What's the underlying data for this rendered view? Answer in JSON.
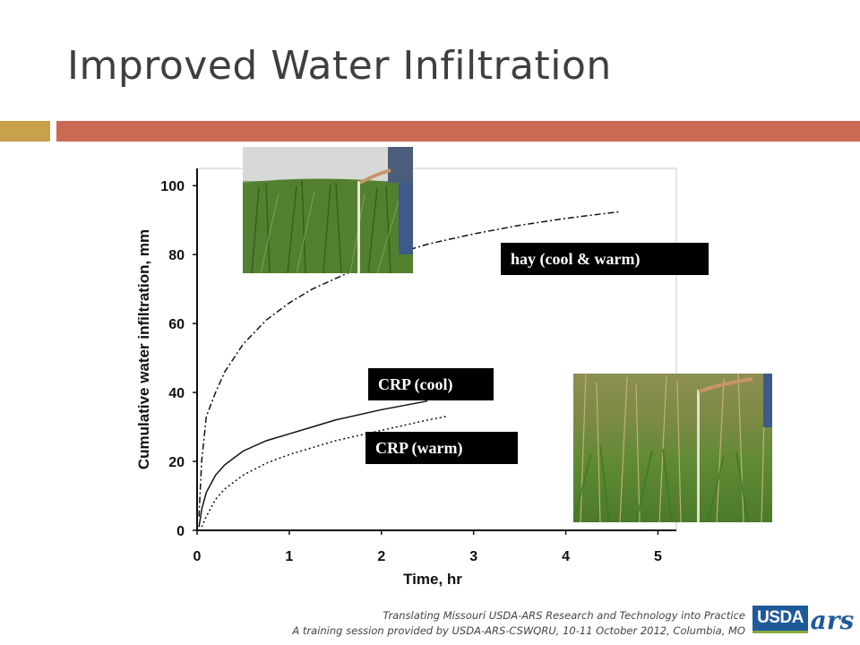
{
  "slide": {
    "title": "Improved Water Infiltration",
    "footer": {
      "line1": "Translating Missouri USDA-ARS Research and Technology into Practice",
      "line2": "A training session provided by USDA-ARS-CSWQRU, 10-11 October 2012, Columbia, MO"
    },
    "logo": {
      "usda": "USDA",
      "ars": "ars"
    },
    "colors": {
      "title": "#3f3f3f",
      "bar_gold": "#c9a04b",
      "bar_rust": "#c96a52",
      "logo_blue": "#1f5a98"
    }
  },
  "chart_data": {
    "type": "line",
    "title": "",
    "xlabel": "Time, hr",
    "ylabel": "Cumulative water infiltration, mm",
    "xlim": [
      0,
      5.2
    ],
    "ylim": [
      0,
      105
    ],
    "xticks": [
      0,
      1,
      2,
      3,
      4,
      5
    ],
    "yticks": [
      0,
      20,
      40,
      60,
      80,
      100
    ],
    "grid": false,
    "series": [
      {
        "name": "hay (cool & warm)",
        "style": "dash-dot",
        "x": [
          0.02,
          0.05,
          0.1,
          0.2,
          0.3,
          0.5,
          0.75,
          1.0,
          1.25,
          1.5,
          2.0,
          2.5,
          3.0,
          3.5,
          4.0,
          4.6
        ],
        "y": [
          4,
          20,
          33,
          40,
          46,
          54,
          61,
          66,
          70,
          73,
          79,
          83,
          86,
          88.5,
          90.5,
          92.5
        ]
      },
      {
        "name": "CRP (cool)",
        "style": "solid",
        "x": [
          0.02,
          0.05,
          0.1,
          0.2,
          0.3,
          0.5,
          0.75,
          1.0,
          1.25,
          1.5,
          2.0,
          2.5
        ],
        "y": [
          1,
          6,
          11,
          16,
          19,
          23,
          26,
          28,
          30,
          32,
          35,
          37.5
        ]
      },
      {
        "name": "CRP (warm)",
        "style": "dotted",
        "x": [
          0.05,
          0.1,
          0.2,
          0.3,
          0.5,
          0.75,
          1.0,
          1.25,
          1.5,
          2.0,
          2.5,
          2.7
        ],
        "y": [
          1,
          4,
          9,
          12,
          16,
          19.5,
          22,
          24,
          26,
          29,
          32,
          33
        ]
      }
    ]
  }
}
